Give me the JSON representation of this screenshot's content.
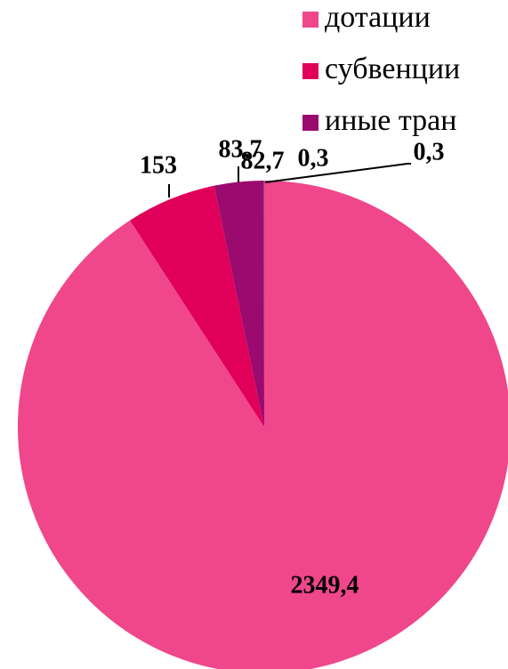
{
  "chart_data": {
    "type": "pie",
    "categories": [
      "дотации",
      "субвенции",
      "иные тран",
      null,
      null
    ],
    "values": [
      2349.4,
      153,
      83.7,
      0.3,
      0.3
    ],
    "value_labels": [
      "2349,4",
      "153",
      "83,7",
      "0,3",
      "0,3"
    ],
    "colors": [
      "#f0468c",
      "#e0005a",
      "#9b0a6e",
      "#7030a0",
      "#4f81bd"
    ],
    "annotations": [
      "82,7"
    ],
    "legend": "top-right"
  }
}
